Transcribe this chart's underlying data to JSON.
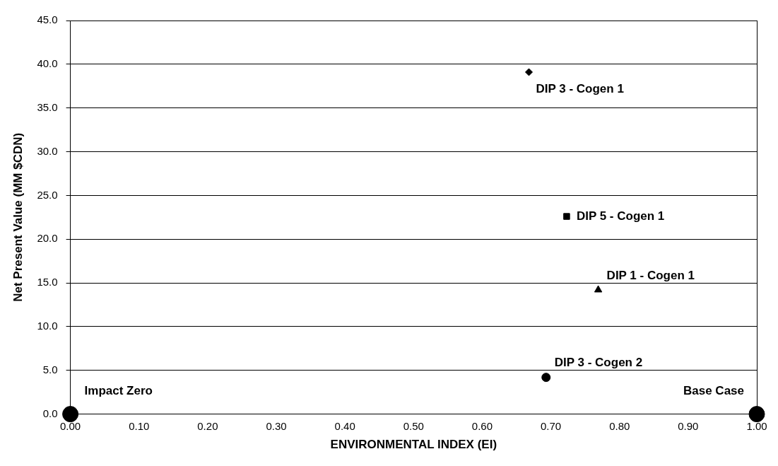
{
  "chart_data": {
    "type": "scatter",
    "xlabel": "ENVIRONMENTAL INDEX (EI)",
    "ylabel": "Net Present Value (MM $CDN)",
    "series": [
      {
        "name": "DIP 3 - Cogen 1",
        "color": "#000000",
        "marker": "diamond",
        "x": [
          0.668
        ],
        "values": [
          39.1
        ]
      },
      {
        "name": "DIP 5 - Cogen 1",
        "color": "#000000",
        "marker": "square",
        "x": [
          0.723
        ],
        "values": [
          22.6
        ]
      },
      {
        "name": "DIP 1 - Cogen 1",
        "color": "#000000",
        "marker": "triangle",
        "x": [
          0.769
        ],
        "values": [
          14.2
        ]
      },
      {
        "name": "DIP 3 - Cogen 2",
        "color": "#000000",
        "marker": "circle",
        "x": [
          0.693
        ],
        "values": [
          4.2
        ]
      },
      {
        "name": "Impact Zero",
        "color": "#000000",
        "marker": "circle",
        "x": [
          0.0
        ],
        "values": [
          0.0
        ]
      },
      {
        "name": "Base Case",
        "color": "#000000",
        "marker": "circle",
        "x": [
          1.0
        ],
        "values": [
          0.0
        ]
      }
    ],
    "xlim": [
      0,
      1
    ],
    "xticks": [
      {
        "value": 0,
        "label": "0.00"
      },
      {
        "value": 0.1,
        "label": "0.10"
      },
      {
        "value": 0.2,
        "label": "0.20"
      },
      {
        "value": 0.3,
        "label": "0.30"
      },
      {
        "value": 0.4,
        "label": "0.40"
      },
      {
        "value": 0.5,
        "label": "0.50"
      },
      {
        "value": 0.6,
        "label": "0.60"
      },
      {
        "value": 0.7,
        "label": "0.70"
      },
      {
        "value": 0.8,
        "label": "0.80"
      },
      {
        "value": 0.9,
        "label": "0.90"
      },
      {
        "value": 1,
        "label": "1.00"
      }
    ],
    "ylim": [
      0,
      45
    ],
    "yticks": [
      {
        "value": 0,
        "label": "0.0"
      },
      {
        "value": 5,
        "label": "5.0"
      },
      {
        "value": 10,
        "label": "10.0"
      },
      {
        "value": 15,
        "label": "15.0"
      },
      {
        "value": 20,
        "label": "20.0"
      },
      {
        "value": 25,
        "label": "25.0"
      },
      {
        "value": 30,
        "label": "30.0"
      },
      {
        "value": 35,
        "label": "35.0"
      },
      {
        "value": 40,
        "label": "40.0"
      },
      {
        "value": 45,
        "label": "45.0"
      }
    ],
    "grid": "y",
    "legend": false
  }
}
